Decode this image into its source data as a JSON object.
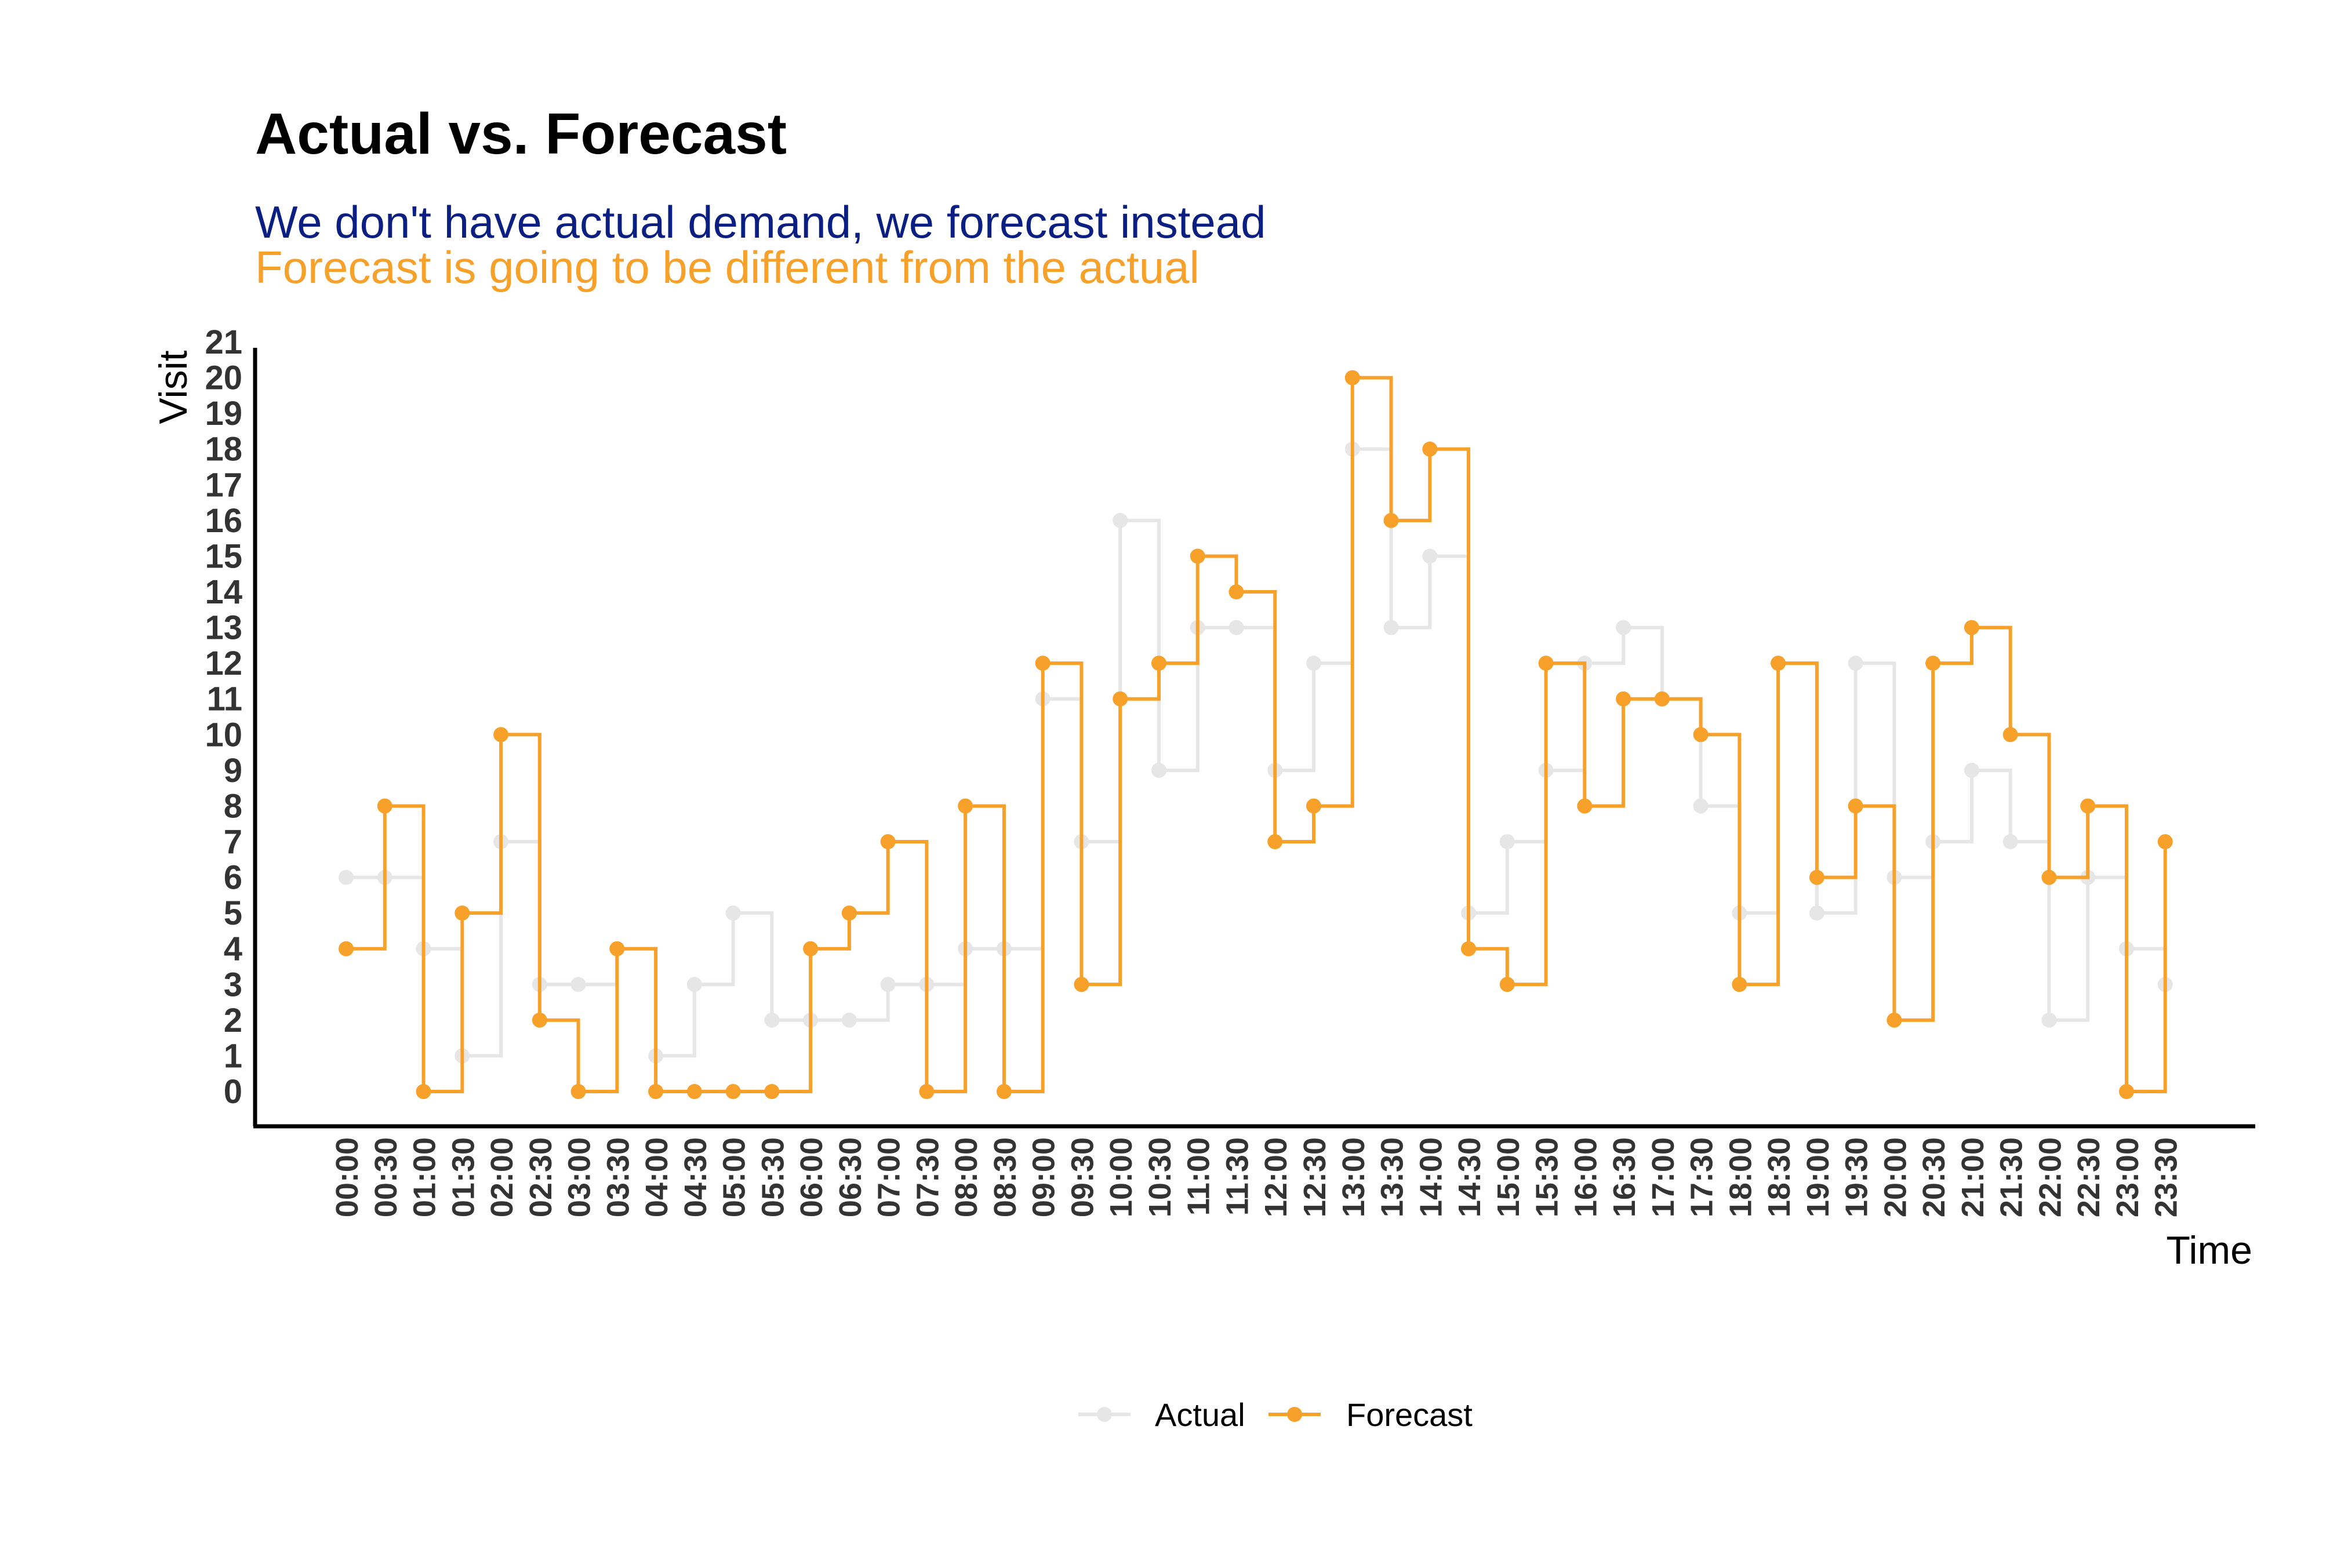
{
  "chart_data": {
    "type": "line",
    "step": "horizontal-then-vertical",
    "title": "Actual vs. Forecast",
    "subtitles": [
      {
        "text": "We don't have actual demand, we forecast instead",
        "color": "#0b1f82"
      },
      {
        "text": "Forecast is going to be different from the actual",
        "color": "#f7a02a"
      }
    ],
    "xlabel": "Time",
    "ylabel": "Visit",
    "ylim": [
      0,
      21
    ],
    "yticks": [
      0,
      1,
      2,
      3,
      4,
      5,
      6,
      7,
      8,
      9,
      10,
      11,
      12,
      13,
      14,
      15,
      16,
      17,
      18,
      19,
      20,
      21
    ],
    "grid": false,
    "legend_position": "bottom",
    "categories": [
      "00:00",
      "00:30",
      "01:00",
      "01:30",
      "02:00",
      "02:30",
      "03:00",
      "03:30",
      "04:00",
      "04:30",
      "05:00",
      "05:30",
      "06:00",
      "06:30",
      "07:00",
      "07:30",
      "08:00",
      "08:30",
      "09:00",
      "09:30",
      "10:00",
      "10:30",
      "11:00",
      "11:30",
      "12:00",
      "12:30",
      "13:00",
      "13:30",
      "14:00",
      "14:30",
      "15:00",
      "15:30",
      "16:00",
      "16:30",
      "17:00",
      "17:30",
      "18:00",
      "18:30",
      "19:00",
      "19:30",
      "20:00",
      "20:30",
      "21:00",
      "21:30",
      "22:00",
      "22:30",
      "23:00",
      "23:30"
    ],
    "series": [
      {
        "name": "Actual",
        "color": "#e6e6e6",
        "values": [
          6,
          6,
          4,
          1,
          7,
          3,
          3,
          4,
          1,
          3,
          5,
          2,
          2,
          2,
          3,
          3,
          4,
          4,
          11,
          7,
          16,
          9,
          13,
          13,
          9,
          12,
          18,
          13,
          15,
          5,
          7,
          9,
          12,
          13,
          11,
          8,
          5,
          12,
          5,
          12,
          6,
          7,
          9,
          7,
          2,
          6,
          4,
          3
        ]
      },
      {
        "name": "Forecast",
        "color": "#f7a02a",
        "values": [
          4,
          8,
          0,
          5,
          10,
          2,
          0,
          4,
          0,
          0,
          0,
          0,
          4,
          5,
          7,
          0,
          8,
          0,
          12,
          3,
          11,
          12,
          15,
          14,
          7,
          8,
          20,
          16,
          18,
          4,
          3,
          12,
          8,
          11,
          11,
          10,
          3,
          12,
          6,
          8,
          2,
          12,
          13,
          10,
          6,
          8,
          0,
          7
        ]
      }
    ]
  }
}
